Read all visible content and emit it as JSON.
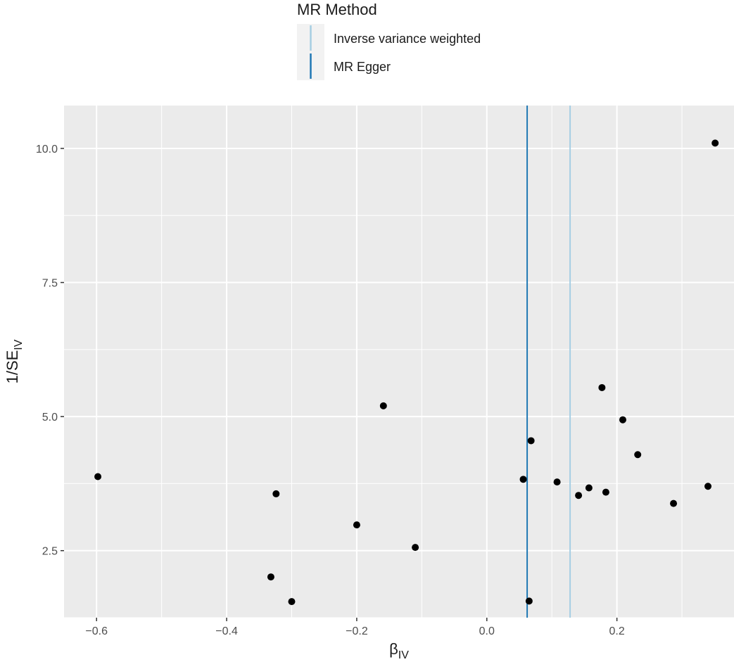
{
  "chart_data": {
    "type": "scatter",
    "title": "",
    "xlabel": "β",
    "xlabel_sub": "IV",
    "ylabel": "1/SE",
    "ylabel_sub": "IV",
    "xlim": [
      -0.65,
      0.38
    ],
    "ylim": [
      1.25,
      10.8
    ],
    "x_ticks": [
      -0.6,
      -0.4,
      -0.2,
      0.0,
      0.2
    ],
    "x_tick_labels": [
      "−0.6",
      "−0.4",
      "−0.2",
      "0.0",
      "0.2"
    ],
    "y_ticks": [
      2.5,
      5.0,
      7.5,
      10.0
    ],
    "y_tick_labels": [
      "2.5",
      "5.0",
      "7.5",
      "10.0"
    ],
    "grid": true,
    "legend": {
      "title": "MR Method",
      "position": "top",
      "entries": [
        {
          "label": "Inverse variance weighted",
          "color": "#a6cee3"
        },
        {
          "label": "MR Egger",
          "color": "#1f78b4"
        }
      ]
    },
    "points": [
      {
        "x": -0.598,
        "y": 3.88
      },
      {
        "x": -0.324,
        "y": 3.56
      },
      {
        "x": -0.332,
        "y": 2.01
      },
      {
        "x": -0.3,
        "y": 1.55
      },
      {
        "x": -0.2,
        "y": 2.98
      },
      {
        "x": -0.159,
        "y": 5.2
      },
      {
        "x": -0.11,
        "y": 2.56
      },
      {
        "x": 0.056,
        "y": 3.83
      },
      {
        "x": 0.068,
        "y": 4.55
      },
      {
        "x": 0.065,
        "y": 1.56
      },
      {
        "x": 0.108,
        "y": 3.78
      },
      {
        "x": 0.141,
        "y": 3.53
      },
      {
        "x": 0.157,
        "y": 3.67
      },
      {
        "x": 0.177,
        "y": 5.54
      },
      {
        "x": 0.183,
        "y": 3.59
      },
      {
        "x": 0.209,
        "y": 4.94
      },
      {
        "x": 0.232,
        "y": 4.29
      },
      {
        "x": 0.287,
        "y": 3.38
      },
      {
        "x": 0.34,
        "y": 3.7
      },
      {
        "x": 0.351,
        "y": 10.1
      }
    ],
    "vlines": [
      {
        "name": "Inverse variance weighted",
        "x": 0.128,
        "color": "#a6cee3"
      },
      {
        "name": "MR Egger",
        "x": 0.062,
        "color": "#1f78b4"
      }
    ]
  },
  "colors": {
    "panel_background": "#ebebeb",
    "grid": "#ffffff",
    "points": "#000000"
  }
}
